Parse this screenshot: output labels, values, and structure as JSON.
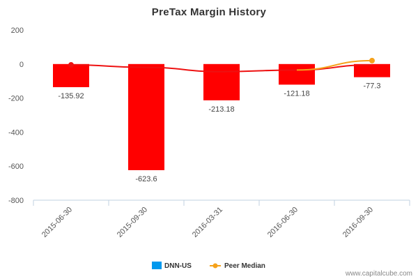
{
  "chart_data": {
    "type": "bar",
    "title": "PreTax Margin History",
    "categories": [
      "2015-06-30",
      "2015-09-30",
      "2016-03-31",
      "2016-06-30",
      "2016-09-30"
    ],
    "series": [
      {
        "name": "DNN-US",
        "kind": "bar",
        "values": [
          -135.92,
          -623.6,
          -213.18,
          -121.18,
          -77.3
        ],
        "value_labels": [
          "-135.92",
          "-623.6",
          "-213.18",
          "-121.18",
          "-77.3"
        ],
        "bar_color": "#ff0000",
        "legend_color": "#0099ee"
      },
      {
        "name": "Peer Median",
        "kind": "line",
        "values": [
          -5,
          -20,
          -45,
          -35,
          20
        ],
        "color": "#f5a21b"
      }
    ],
    "trend_line": {
      "color": "#ee1111",
      "values": [
        -5,
        -20,
        -45,
        -35,
        -5
      ]
    },
    "ylim": [
      -800,
      200
    ],
    "yticks": [
      -800,
      -600,
      -400,
      -200,
      0,
      200
    ],
    "legend": "bottom",
    "grid": false
  },
  "watermark": "www.capitalcube.com"
}
